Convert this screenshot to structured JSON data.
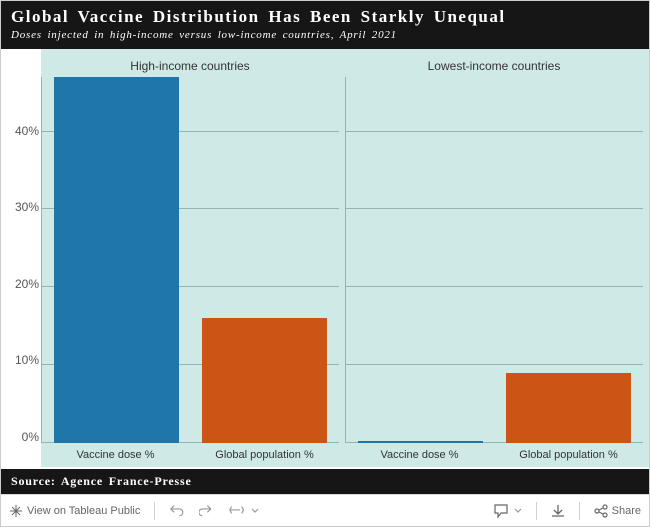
{
  "header": {
    "title": "Global Vaccine Distribution Has Been Starkly Unequal",
    "subtitle": "Doses injected in high-income versus low-income countries, April 2021"
  },
  "chart": {
    "type": "bar",
    "background_color": "#cfe9e7",
    "grid_color": "#94b5b4",
    "ylim_max": 47,
    "yticks": [
      0,
      10,
      20,
      30,
      40
    ],
    "ytick_labels": [
      "0%",
      "10%",
      "20%",
      "30%",
      "40%"
    ],
    "panels": [
      {
        "title": "High-income countries",
        "bars": [
          {
            "label": "Vaccine dose %",
            "value": 47,
            "color": "#1f77a9"
          },
          {
            "label": "Global population %",
            "value": 16,
            "color": "#cc5516"
          }
        ]
      },
      {
        "title": "Lowest-income countries",
        "bars": [
          {
            "label": "Vaccine dose %",
            "value": 0.2,
            "color": "#1f77a9"
          },
          {
            "label": "Global population %",
            "value": 9,
            "color": "#cc5516"
          }
        ]
      }
    ]
  },
  "source": "Source: Agence France-Presse",
  "toolbar": {
    "view_label": "View on Tableau Public",
    "share_label": "Share"
  }
}
